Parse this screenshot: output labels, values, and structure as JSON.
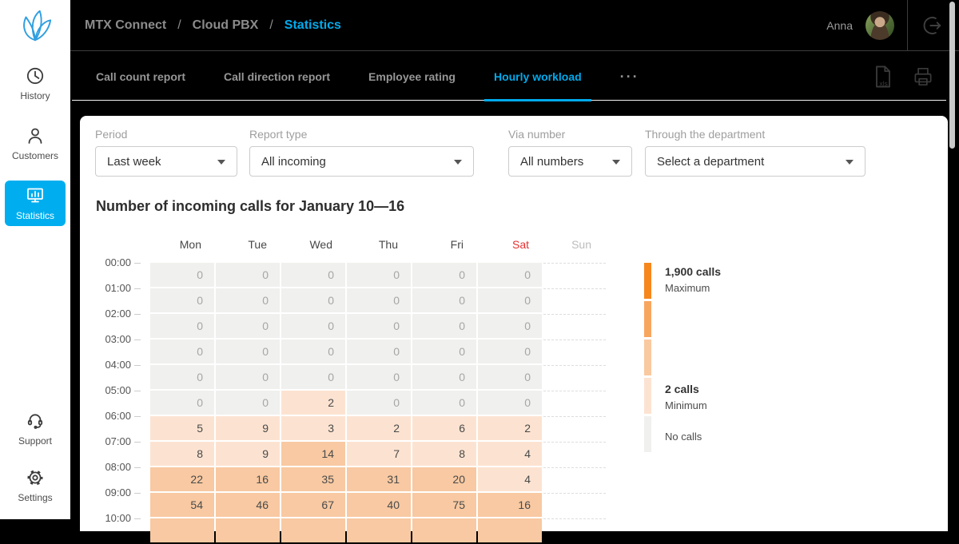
{
  "colors": {
    "accent": "#00aeef",
    "sat_red": "#e53030"
  },
  "header": {
    "breadcrumb": [
      "MTX Connect",
      "Cloud PBX",
      "Statistics"
    ],
    "separator": "/",
    "user_name": "Anna"
  },
  "sidebar": {
    "items": [
      {
        "label": "History"
      },
      {
        "label": "Customers"
      },
      {
        "label": "Statistics"
      }
    ],
    "bottom_items": [
      {
        "label": "Support"
      },
      {
        "label": "Settings"
      }
    ]
  },
  "tabs": {
    "items": [
      "Call count report",
      "Call direction report",
      "Employee rating",
      "Hourly workload"
    ],
    "active_index": 3,
    "more": "···"
  },
  "icons": {
    "xls_label": "xls"
  },
  "filters": [
    {
      "label": "Period",
      "value": "Last week"
    },
    {
      "label": "Report type",
      "value": "All incoming"
    },
    {
      "label": "Via number",
      "value": "All numbers"
    },
    {
      "label": "Through the department",
      "value": "Select a department"
    }
  ],
  "report_title": "Number of incoming calls for January 10—16",
  "chart_data": {
    "type": "heatmap",
    "title": "Number of incoming calls for January 10—16",
    "columns": [
      "Mon",
      "Tue",
      "Wed",
      "Thu",
      "Fri",
      "Sat",
      "Sun"
    ],
    "highlight_column": "Sat",
    "empty_column": "Sun",
    "rows": [
      {
        "time": "00:00",
        "values": [
          0,
          0,
          0,
          0,
          0,
          0
        ]
      },
      {
        "time": "01:00",
        "values": [
          0,
          0,
          0,
          0,
          0,
          0
        ]
      },
      {
        "time": "02:00",
        "values": [
          0,
          0,
          0,
          0,
          0,
          0
        ]
      },
      {
        "time": "03:00",
        "values": [
          0,
          0,
          0,
          0,
          0,
          0
        ]
      },
      {
        "time": "04:00",
        "values": [
          0,
          0,
          0,
          0,
          0,
          0
        ]
      },
      {
        "time": "05:00",
        "values": [
          0,
          0,
          2,
          0,
          0,
          0
        ]
      },
      {
        "time": "06:00",
        "values": [
          5,
          9,
          3,
          2,
          6,
          2
        ]
      },
      {
        "time": "07:00",
        "values": [
          8,
          9,
          14,
          7,
          8,
          4
        ]
      },
      {
        "time": "08:00",
        "values": [
          22,
          16,
          35,
          31,
          20,
          4
        ]
      },
      {
        "time": "09:00",
        "values": [
          54,
          46,
          67,
          40,
          75,
          16
        ]
      },
      {
        "time": "10:00",
        "values": null,
        "clipped": true
      }
    ],
    "low_max": 9,
    "colors": {
      "zero": "#f0f0ee",
      "low": "#fce3d1",
      "mid": "#f8c9a2",
      "value_text": "#4a4a4a",
      "zero_text": "#a6a6a6"
    },
    "legend": {
      "segments": [
        "#f6871d",
        "#f8a55f",
        "#f9c9a0",
        "#fce3d1",
        "#f0f0ee"
      ],
      "max_label": "1,900 calls",
      "max_sub": "Maximum",
      "min_label": "2 calls",
      "min_sub": "Minimum",
      "none_label": "No calls"
    }
  }
}
